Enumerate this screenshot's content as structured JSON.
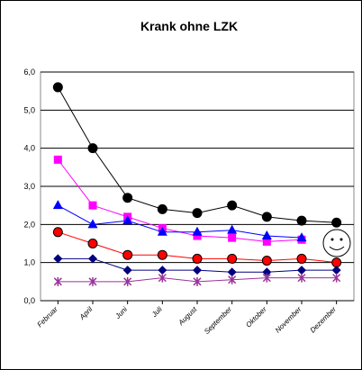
{
  "chart_data": {
    "type": "line",
    "title": "Krank ohne LZK",
    "categories": [
      "Februar",
      "April",
      "Juni",
      "Juli",
      "August",
      "September",
      "Oktober",
      "November",
      "Dezember"
    ],
    "series": [
      {
        "color": "#000000",
        "marker": "circle",
        "values": [
          5.6,
          4.0,
          2.7,
          2.4,
          2.3,
          2.5,
          2.2,
          2.1,
          2.05
        ]
      },
      {
        "color": "#ff00ff",
        "marker": "square",
        "values": [
          3.7,
          2.5,
          2.2,
          1.9,
          1.7,
          1.65,
          1.55,
          1.6,
          null
        ]
      },
      {
        "color": "#0000ff",
        "marker": "triangle",
        "values": [
          2.5,
          2.0,
          2.1,
          1.8,
          1.8,
          1.85,
          1.7,
          1.65,
          null
        ]
      },
      {
        "color": "#ff0000",
        "marker": "circle",
        "values": [
          1.8,
          1.5,
          1.2,
          1.2,
          1.1,
          1.1,
          1.05,
          1.1,
          1.0
        ]
      },
      {
        "color": "#000080",
        "marker": "diamond",
        "values": [
          1.1,
          1.1,
          0.8,
          0.8,
          0.8,
          0.75,
          0.75,
          0.8,
          0.8
        ]
      },
      {
        "color": "#993399",
        "marker": "asterisk",
        "values": [
          0.5,
          0.5,
          0.5,
          0.6,
          0.5,
          0.55,
          0.6,
          0.6,
          0.6
        ]
      }
    ],
    "ylim": [
      0,
      6
    ],
    "yticks": [
      {
        "value": 0,
        "label": "0,0"
      },
      {
        "value": 1,
        "label": "1,0"
      },
      {
        "value": 2,
        "label": "2,0"
      },
      {
        "value": 3,
        "label": "3,0"
      },
      {
        "value": 4,
        "label": "4,0"
      },
      {
        "value": 5,
        "label": "5,0"
      },
      {
        "value": 6,
        "label": "6,0"
      }
    ],
    "grid": true
  }
}
